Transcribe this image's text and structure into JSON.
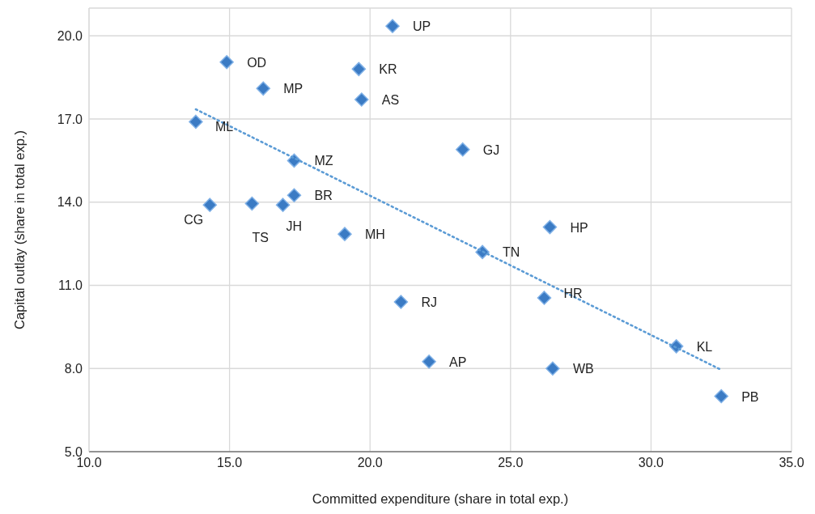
{
  "chart_data": {
    "type": "scatter",
    "xlabel": "Committed expenditure (share in total exp.)",
    "ylabel": "Capital outlay (share in total exp.)",
    "xlim": [
      10,
      35
    ],
    "xticks": [
      {
        "value": 10,
        "label": "10.0"
      },
      {
        "value": 15,
        "label": "15.0"
      },
      {
        "value": 20,
        "label": "20.0"
      },
      {
        "value": 25,
        "label": "25.0"
      },
      {
        "value": 30,
        "label": "30.0"
      },
      {
        "value": 35,
        "label": "35.0"
      }
    ],
    "ylim": [
      5,
      21
    ],
    "yticks": [
      {
        "value": 5,
        "label": "5.0"
      },
      {
        "value": 8,
        "label": "8.0"
      },
      {
        "value": 11,
        "label": "11.0"
      },
      {
        "value": 14,
        "label": "14.0"
      },
      {
        "value": 17,
        "label": "17.0"
      },
      {
        "value": 20,
        "label": "20.0"
      }
    ],
    "grid": true,
    "legend": false,
    "series": [
      {
        "color": "#3b7bc4",
        "marker": "diamond",
        "x": [
          20.8,
          14.9,
          16.2,
          19.6,
          19.7,
          13.8,
          23.3,
          17.3,
          17.3,
          16.9,
          15.8,
          14.3,
          19.1,
          26.4,
          24.0,
          21.1,
          26.2,
          22.1,
          26.5,
          30.9,
          32.5
        ],
        "values": [
          20.35,
          19.05,
          18.1,
          18.8,
          17.7,
          16.9,
          15.9,
          15.5,
          14.25,
          13.9,
          13.95,
          13.9,
          12.85,
          13.1,
          12.2,
          10.4,
          10.55,
          8.25,
          8.0,
          8.8,
          7.0
        ]
      },
      {
        "type": "line",
        "color": "#5b9bd5",
        "line_style": "dotted",
        "marker": "none",
        "x": [
          13.8,
          32.5
        ],
        "values": [
          17.35,
          7.95
        ]
      }
    ],
    "annotations": [
      {
        "text": "UP",
        "x": 20.8,
        "y": 20.35
      },
      {
        "text": "OD",
        "x": 14.9,
        "y": 19.05
      },
      {
        "text": "MP",
        "x": 16.2,
        "y": 18.1
      },
      {
        "text": "KR",
        "x": 19.6,
        "y": 18.8
      },
      {
        "text": "AS",
        "x": 19.7,
        "y": 17.7
      },
      {
        "text": "ML",
        "x": 13.8,
        "y": 16.9
      },
      {
        "text": "GJ",
        "x": 23.3,
        "y": 15.9
      },
      {
        "text": "MZ",
        "x": 17.3,
        "y": 15.5
      },
      {
        "text": "BR",
        "x": 17.3,
        "y": 14.25
      },
      {
        "text": "JH",
        "x": 16.9,
        "y": 13.9
      },
      {
        "text": "TS",
        "x": 15.8,
        "y": 13.95
      },
      {
        "text": "CG",
        "x": 14.3,
        "y": 13.9
      },
      {
        "text": "MH",
        "x": 19.1,
        "y": 12.85
      },
      {
        "text": "HP",
        "x": 26.4,
        "y": 13.1
      },
      {
        "text": "TN",
        "x": 24.0,
        "y": 12.2
      },
      {
        "text": "RJ",
        "x": 21.1,
        "y": 10.4
      },
      {
        "text": "HR",
        "x": 26.2,
        "y": 10.55
      },
      {
        "text": "AP",
        "x": 22.1,
        "y": 8.25
      },
      {
        "text": "WB",
        "x": 26.5,
        "y": 8.0
      },
      {
        "text": "KL",
        "x": 30.9,
        "y": 8.8
      },
      {
        "text": "PB",
        "x": 32.5,
        "y": 7.0
      }
    ]
  }
}
